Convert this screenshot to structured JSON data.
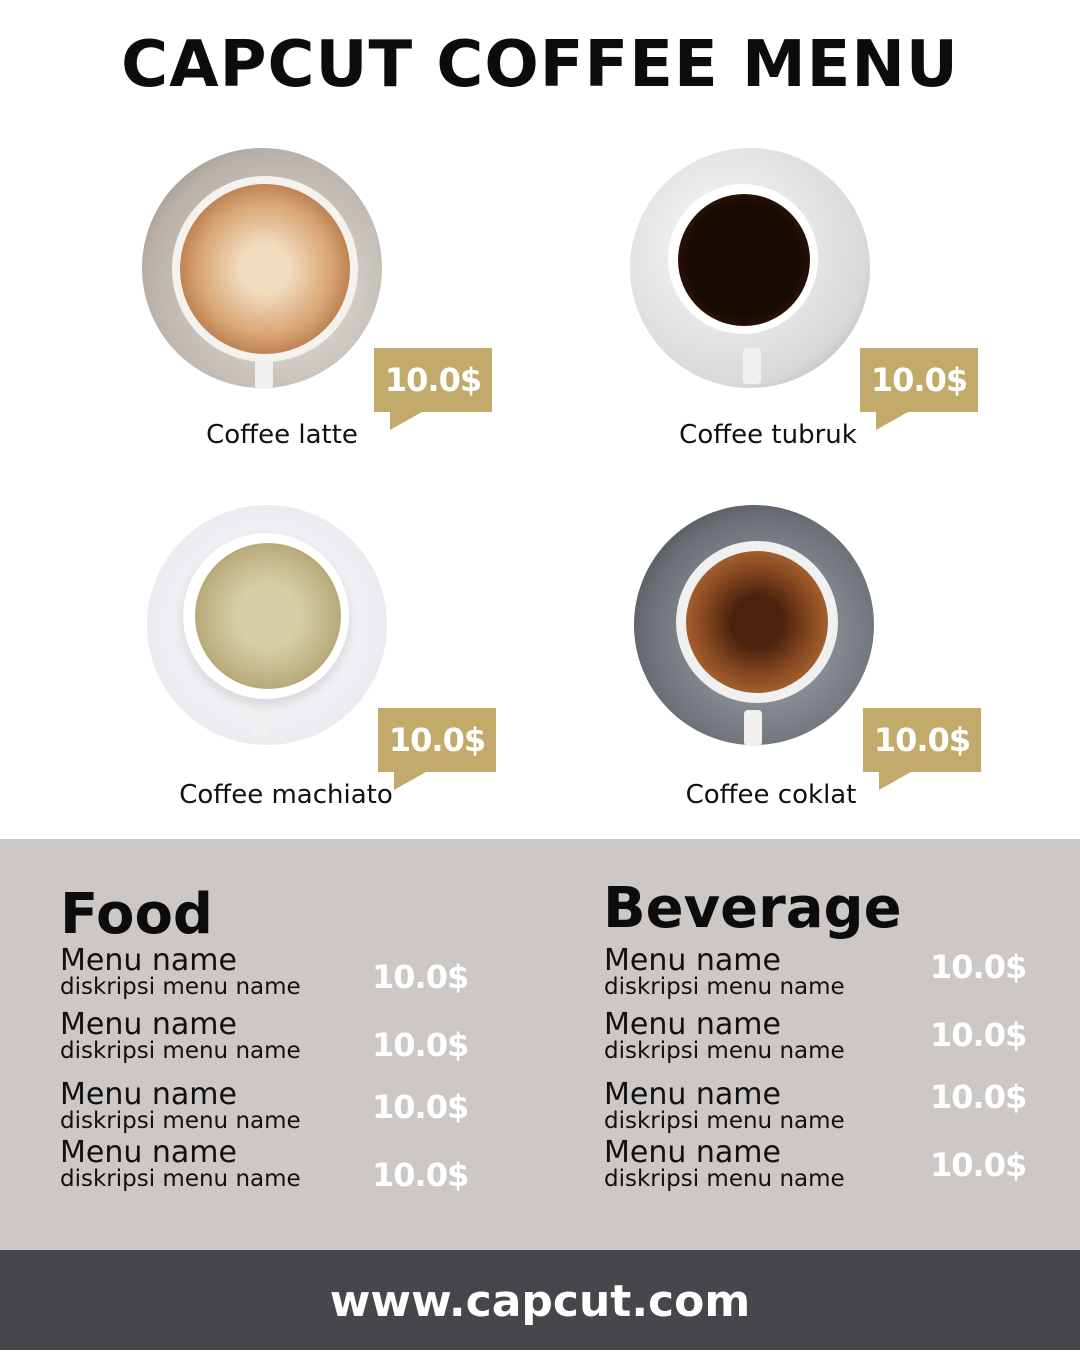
{
  "header": {
    "title": "CAPCUT COFFEE MENU"
  },
  "colors": {
    "accent": "#c2ab6a",
    "panel": "#ccc8c5",
    "footer": "#47464b"
  },
  "featured": [
    {
      "name": "Coffee latte",
      "price": "10.0$"
    },
    {
      "name": "Coffee tubruk",
      "price": "10.0$"
    },
    {
      "name": "Coffee machiato",
      "price": "10.0$"
    },
    {
      "name": "Coffee coklat",
      "price": "10.0$"
    }
  ],
  "food": {
    "title": "Food",
    "items": [
      {
        "name": "Menu name",
        "desc": "diskripsi menu name",
        "price": "10.0$"
      },
      {
        "name": "Menu name",
        "desc": "diskripsi menu name",
        "price": "10.0$"
      },
      {
        "name": "Menu name",
        "desc": "diskripsi menu name",
        "price": "10.0$"
      },
      {
        "name": "Menu name",
        "desc": "diskripsi menu name",
        "price": "10.0$"
      }
    ]
  },
  "beverage": {
    "title": "Beverage",
    "items": [
      {
        "name": "Menu name",
        "desc": "diskripsi menu name",
        "price": "10.0$"
      },
      {
        "name": "Menu name",
        "desc": "diskripsi menu name",
        "price": "10.0$"
      },
      {
        "name": "Menu name",
        "desc": "diskripsi menu name",
        "price": "10.0$"
      },
      {
        "name": "Menu name",
        "desc": "diskripsi menu name",
        "price": "10.0$"
      }
    ]
  },
  "footer": {
    "url": "www.capcut.com"
  }
}
